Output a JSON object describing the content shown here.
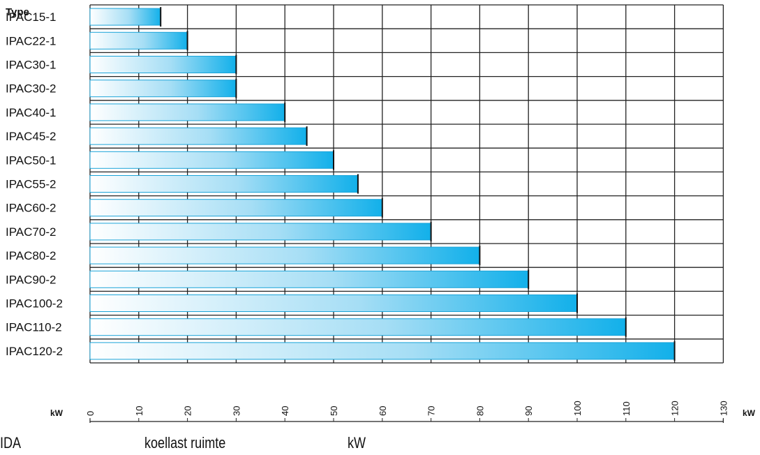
{
  "chart_data": {
    "type": "bar",
    "orientation": "horizontal",
    "y_header": "Type",
    "categories": [
      "IPAC15-1",
      "IPAC22-1",
      "IPAC30-1",
      "IPAC30-2",
      "IPAC40-1",
      "IPAC45-2",
      "IPAC50-1",
      "IPAC55-2",
      "IPAC60-2",
      "IPAC70-2",
      "IPAC80-2",
      "IPAC90-2",
      "IPAC100-2",
      "IPAC110-2",
      "IPAC120-2"
    ],
    "values": [
      14.5,
      20,
      30,
      30,
      40,
      44.5,
      50,
      55,
      60,
      70,
      80,
      90,
      100,
      110,
      120
    ],
    "x_ticks": [
      "0",
      "10",
      "20",
      "30",
      "40",
      "50",
      "60",
      "70",
      "80",
      "90",
      "100",
      "110",
      "120",
      "130"
    ],
    "xlim": [
      0,
      130
    ],
    "x_unit_left": "kW",
    "x_unit_right": "kW",
    "grid": true,
    "bar_color_start": "#ffffff",
    "bar_color_end": "#12b0ea",
    "bar_border": "#1aa3d8"
  },
  "footer": {
    "left": "IDA",
    "middle": "koellast ruimte",
    "right": "kW"
  }
}
